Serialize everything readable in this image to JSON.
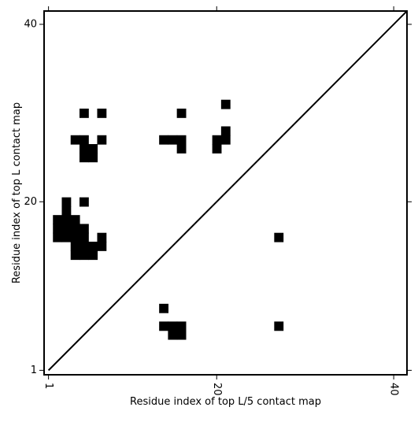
{
  "chart_data": {
    "type": "heatmap",
    "title": "",
    "xlabel": "Residue index of top L/5 contact map",
    "ylabel": "Residue index of top L contact map",
    "xlim": [
      0.5,
      41.5
    ],
    "ylim": [
      0.5,
      41.5
    ],
    "x_ticks": [
      1,
      20,
      40
    ],
    "x_tick_labels": [
      "1",
      "20",
      "40"
    ],
    "y_ticks": [
      1,
      20,
      40
    ],
    "y_tick_labels": [
      "1",
      "20",
      "40"
    ],
    "x_tick_label_rotation": "vertical",
    "diagonal_line": true,
    "grid": false,
    "legend": "none",
    "cell_color": "#000000",
    "background_color": "#ffffff",
    "line_color": "#000000",
    "contacts": [
      [
        5,
        30
      ],
      [
        7,
        30
      ],
      [
        16,
        30
      ],
      [
        21,
        31
      ],
      [
        21,
        28
      ],
      [
        21,
        27
      ],
      [
        20,
        27
      ],
      [
        20,
        26
      ],
      [
        4,
        27
      ],
      [
        5,
        27
      ],
      [
        7,
        27
      ],
      [
        14,
        27
      ],
      [
        15,
        27
      ],
      [
        16,
        27
      ],
      [
        16,
        26
      ],
      [
        5,
        26
      ],
      [
        6,
        26
      ],
      [
        5,
        25
      ],
      [
        6,
        25
      ],
      [
        3,
        20
      ],
      [
        5,
        20
      ],
      [
        3,
        19
      ],
      [
        2,
        18
      ],
      [
        3,
        18
      ],
      [
        4,
        18
      ],
      [
        2,
        17
      ],
      [
        3,
        17
      ],
      [
        4,
        17
      ],
      [
        5,
        17
      ],
      [
        2,
        16
      ],
      [
        3,
        16
      ],
      [
        4,
        16
      ],
      [
        5,
        16
      ],
      [
        7,
        16
      ],
      [
        4,
        15
      ],
      [
        5,
        15
      ],
      [
        6,
        15
      ],
      [
        7,
        15
      ],
      [
        4,
        14
      ],
      [
        5,
        14
      ],
      [
        6,
        14
      ],
      [
        27,
        16
      ],
      [
        14,
        8
      ],
      [
        14,
        6
      ],
      [
        15,
        6
      ],
      [
        16,
        6
      ],
      [
        27,
        6
      ],
      [
        15,
        5
      ],
      [
        16,
        5
      ]
    ]
  }
}
